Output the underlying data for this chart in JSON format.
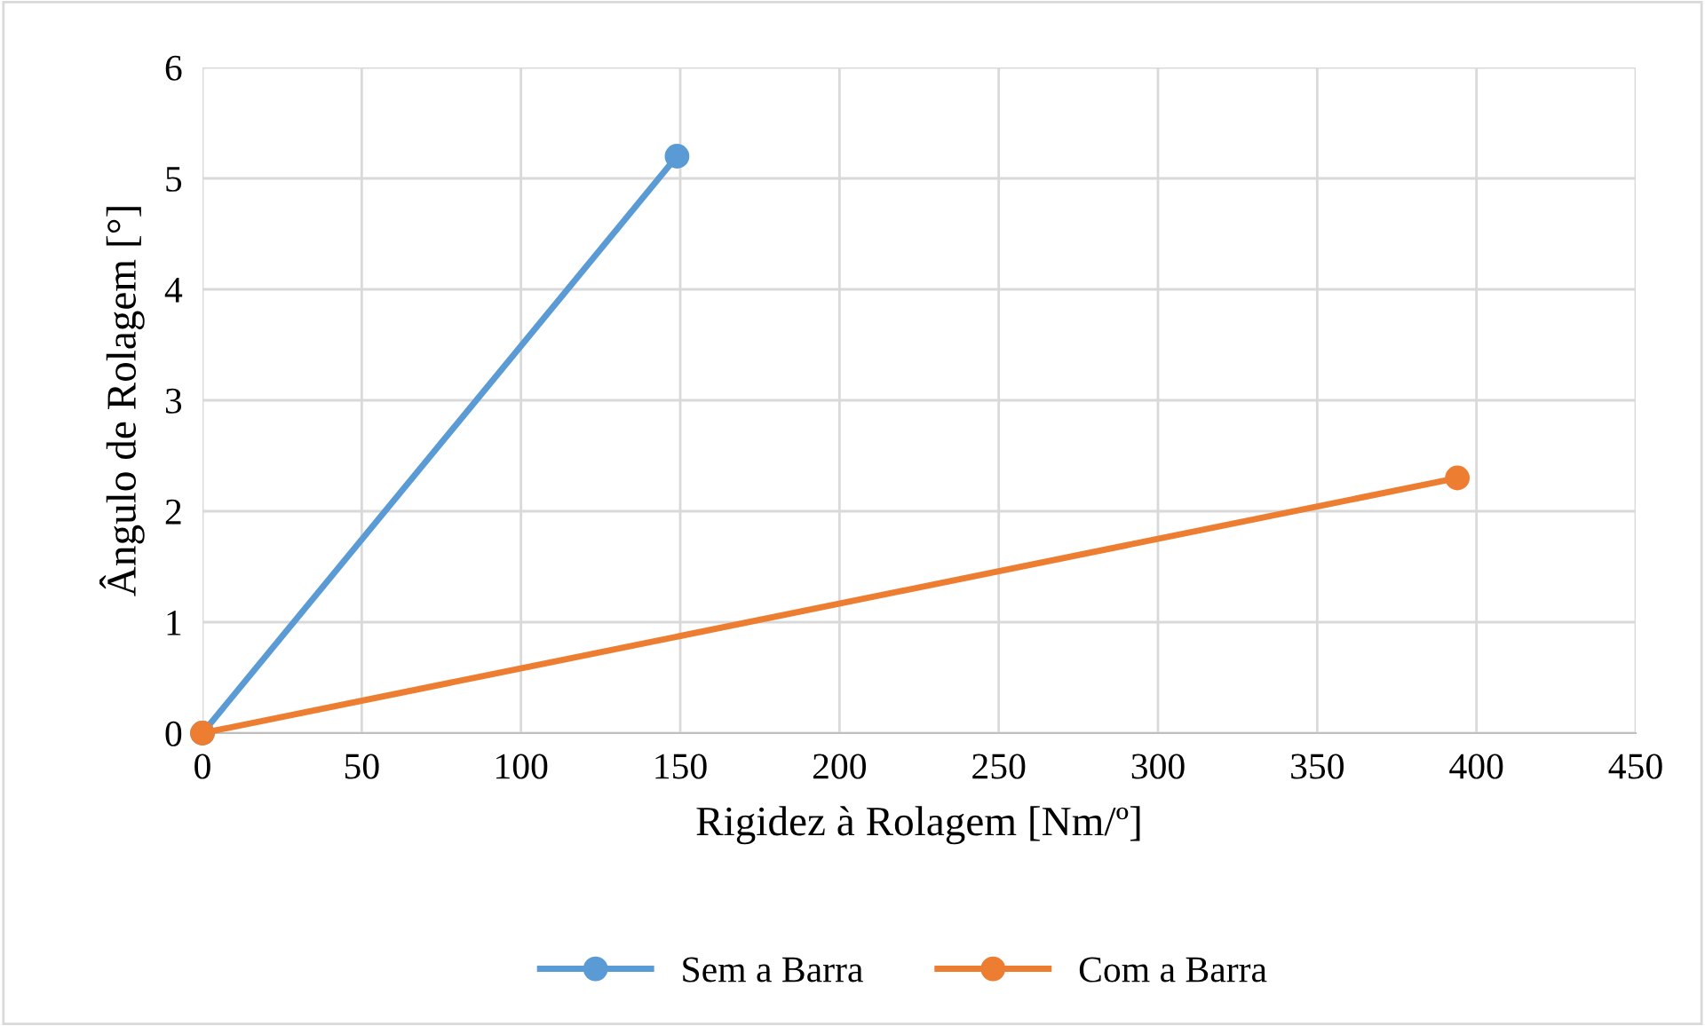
{
  "chart_data": {
    "type": "line",
    "xlabel": "Rigidez à Rolagem [Nm/º]",
    "ylabel": "Ângulo de Rolagem [°]",
    "series": [
      {
        "name": "Sem a Barra",
        "color": "#5b9bd5",
        "x": [
          0,
          149
        ],
        "values": [
          0,
          5.2
        ]
      },
      {
        "name": "Com a Barra",
        "color": "#ed7d31",
        "x": [
          0,
          394
        ],
        "values": [
          0,
          2.3
        ]
      }
    ],
    "xlim": [
      0,
      450
    ],
    "xticks": [
      0,
      50,
      100,
      150,
      200,
      250,
      300,
      350,
      400,
      450
    ],
    "ylim": [
      0,
      6
    ],
    "yticks": [
      0,
      1,
      2,
      3,
      4,
      5,
      6
    ],
    "grid": true,
    "legend": "bottom",
    "marker": "circle",
    "line_style": "solid"
  }
}
